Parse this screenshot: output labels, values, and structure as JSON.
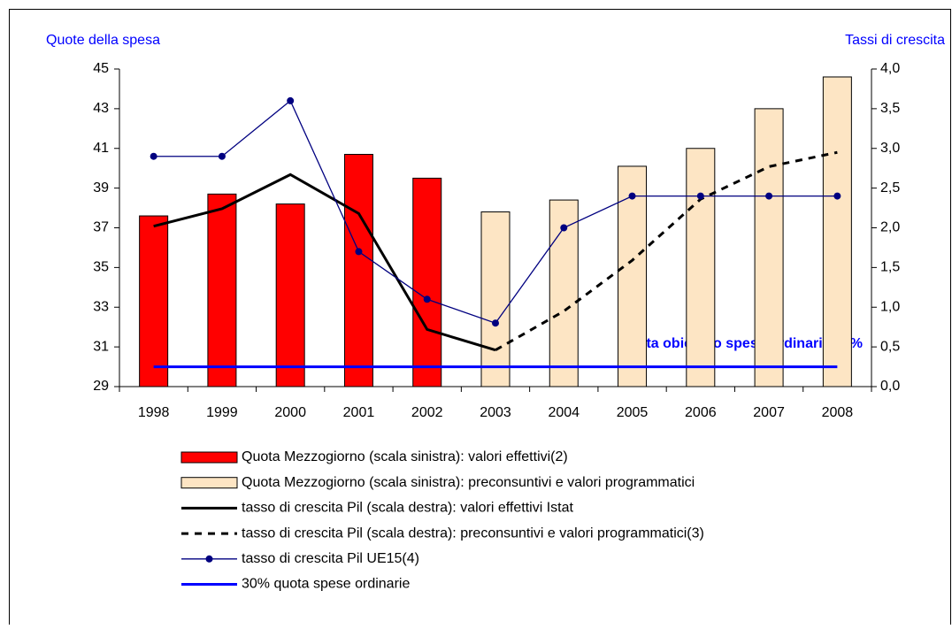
{
  "chart_data": {
    "type": "combo",
    "ylabel": "Quote della spesa",
    "y2label": "Tassi di crescita",
    "annotation": "Quota obiettivo spese ordinarie 30%",
    "categories": [
      "1998",
      "1999",
      "2000",
      "2001",
      "2002",
      "2003",
      "2004",
      "2005",
      "2006",
      "2007",
      "2008"
    ],
    "ylim": [
      29,
      45
    ],
    "yticks": [
      29,
      31,
      33,
      35,
      37,
      39,
      41,
      43,
      45
    ],
    "y2lim": [
      0,
      4
    ],
    "y2ticks": [
      {
        "value": 0,
        "label": "0,0"
      },
      {
        "value": 0.5,
        "label": "0,5"
      },
      {
        "value": 1,
        "label": "1,0"
      },
      {
        "value": 1.5,
        "label": "1,5"
      },
      {
        "value": 2,
        "label": "2,0"
      },
      {
        "value": 2.5,
        "label": "2,5"
      },
      {
        "value": 3,
        "label": "3,0"
      },
      {
        "value": 3.5,
        "label": "3,5"
      },
      {
        "value": 4,
        "label": "4,0"
      }
    ],
    "series": [
      {
        "name": "Quota Mezzogiorno (scala sinistra): valori effettivi(2)",
        "type": "bar",
        "color": "#ff0000",
        "values": [
          37.6,
          38.7,
          38.2,
          40.7,
          39.5,
          null,
          null,
          null,
          null,
          null,
          null
        ]
      },
      {
        "name": "Quota Mezzogiorno (scala sinistra): preconsuntivi e valori programmatici",
        "type": "bar",
        "color": "#fde5c4",
        "values": [
          null,
          null,
          null,
          null,
          null,
          37.8,
          38.4,
          40.1,
          41.0,
          43.0,
          44.6
        ]
      },
      {
        "name": "tasso di crescita Pil (scala destra): valori effettivi Istat",
        "type": "line",
        "axis": "y2",
        "color": "#000000",
        "values": [
          2.02,
          2.24,
          2.67,
          2.18,
          0.72,
          0.46,
          null,
          null,
          null,
          null,
          null
        ]
      },
      {
        "name": "tasso di crescita Pil (scala destra): preconsuntivi e valori programmatici(3)",
        "type": "line",
        "axis": "y2",
        "dashed": true,
        "color": "#000000",
        "values": [
          null,
          null,
          null,
          null,
          null,
          0.46,
          0.95,
          1.59,
          2.36,
          2.77,
          2.95
        ]
      },
      {
        "name": "tasso di crescita Pil UE15(4)",
        "type": "line",
        "axis": "y2",
        "marker": "circle",
        "color": "#000080",
        "values": [
          2.9,
          2.9,
          3.6,
          1.7,
          1.1,
          0.8,
          2.0,
          2.4,
          2.4,
          2.4,
          2.4
        ]
      },
      {
        "name": "30% quota spese ordinarie",
        "type": "line",
        "color": "#0000ff",
        "values": [
          30,
          30,
          30,
          30,
          30,
          30,
          30,
          30,
          30,
          30,
          30
        ]
      }
    ]
  }
}
